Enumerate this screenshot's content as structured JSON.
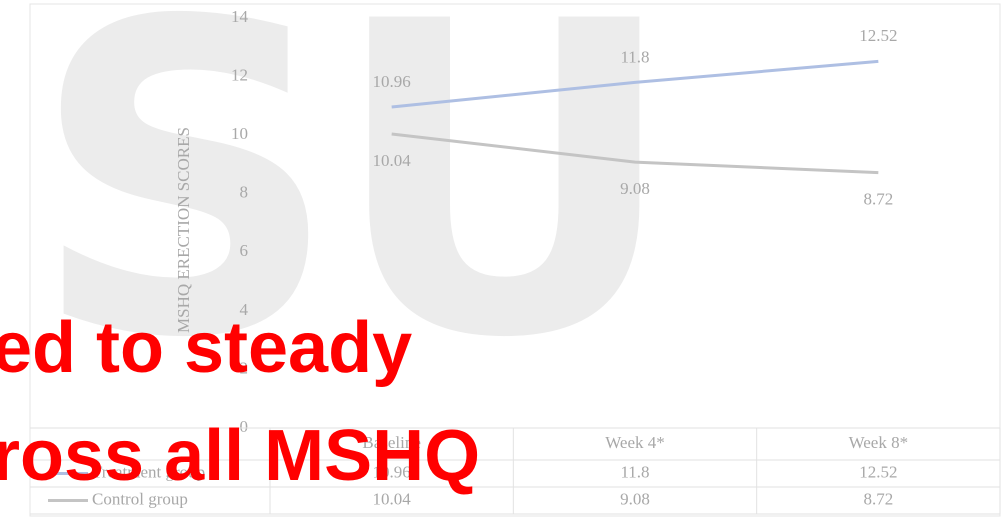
{
  "chart_data": {
    "type": "line",
    "y_label": "MSHQ ERECTION SCORES",
    "categories": [
      "Baseline",
      "Week 4*",
      "Week 8*"
    ],
    "series": [
      {
        "name": "Treatment group",
        "color": "#aebfe3",
        "values": [
          10.96,
          11.8,
          12.52
        ]
      },
      {
        "name": "Control group",
        "color": "#c4c4c4",
        "values": [
          10.04,
          9.08,
          8.72
        ]
      }
    ],
    "ylim": [
      0,
      14
    ],
    "yticks": [
      0,
      2,
      4,
      6,
      8,
      10,
      12,
      14
    ],
    "grid": false,
    "data_table": true
  },
  "watermark": "SU",
  "overlay": {
    "lines": [
      "ed to steady",
      "ross all MSHQ"
    ],
    "color": "#ff0000"
  }
}
